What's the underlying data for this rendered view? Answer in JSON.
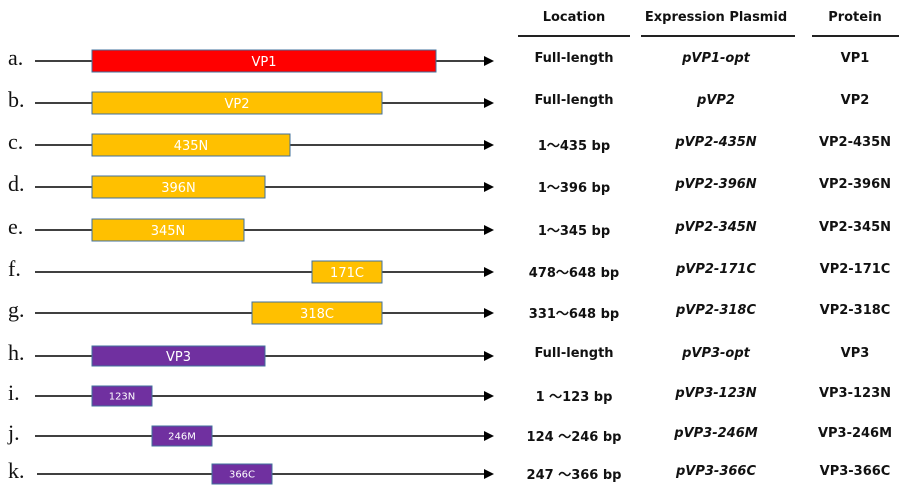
{
  "headers": {
    "location": "Location",
    "plasmid": "Expression Plasmid",
    "protein": "Protein"
  },
  "colors": {
    "vp1": "#ff0000",
    "vp2": "#ffc000",
    "vp3": "#7030a0",
    "border": "#41719c",
    "line": "#000000"
  },
  "rows": [
    {
      "letter": "a.",
      "segment_label": "VP1",
      "color_key": "vp1",
      "location": "Full-length",
      "plasmid": "pVP1-opt",
      "protein": "VP1"
    },
    {
      "letter": "b.",
      "segment_label": "VP2",
      "color_key": "vp2",
      "location": "Full-length",
      "plasmid": "pVP2",
      "protein": "VP2"
    },
    {
      "letter": "c.",
      "segment_label": "435N",
      "color_key": "vp2",
      "location": "1～435 bp",
      "plasmid": "pVP2-435N",
      "protein": "VP2-435N"
    },
    {
      "letter": "d.",
      "segment_label": "396N",
      "color_key": "vp2",
      "location": "1～396 bp",
      "plasmid": "pVP2-396N",
      "protein": "VP2-396N"
    },
    {
      "letter": "e.",
      "segment_label": "345N",
      "color_key": "vp2",
      "location": "1～345 bp",
      "plasmid": "pVP2-345N",
      "protein": "VP2-345N"
    },
    {
      "letter": "f.",
      "segment_label": "171C",
      "color_key": "vp2",
      "location": "478～648 bp",
      "plasmid": "pVP2-171C",
      "protein": "VP2-171C"
    },
    {
      "letter": "g.",
      "segment_label": "318C",
      "color_key": "vp2",
      "location": "331～648 bp",
      "plasmid": "pVP2-318C",
      "protein": "VP2-318C"
    },
    {
      "letter": "h.",
      "segment_label": "VP3",
      "color_key": "vp3",
      "location": "Full-length",
      "plasmid": "pVP3-opt",
      "protein": "VP3"
    },
    {
      "letter": "i.",
      "segment_label": "123N",
      "color_key": "vp3",
      "location": "1 ～123 bp",
      "plasmid": "pVP3-123N",
      "protein": "VP3-123N"
    },
    {
      "letter": "j.",
      "segment_label": "246M",
      "color_key": "vp3",
      "location": "124 ～246 bp",
      "plasmid": "pVP3-246M",
      "protein": "VP3-246M"
    },
    {
      "letter": "k.",
      "segment_label": "366C",
      "color_key": "vp3",
      "location": "247 ～366 bp",
      "plasmid": "pVP3-366C",
      "protein": "VP3-366C"
    }
  ]
}
